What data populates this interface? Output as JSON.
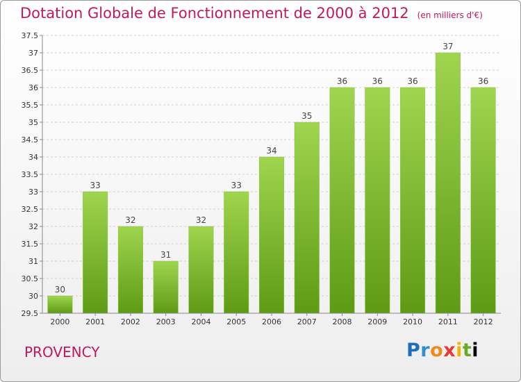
{
  "title": "Dotation Globale de Fonctionnement de 2000 à 2012",
  "subtitle": "(en milliers d'€)",
  "commune": "PROVENCY",
  "logo_text": "Proxiti",
  "colors": {
    "title": "#c2185b",
    "bar_light": "#9fd54f",
    "bar_dark": "#5e9b15"
  },
  "chart_data": {
    "type": "bar",
    "title": "Dotation Globale de Fonctionnement de 2000 à 2012",
    "subtitle": "(en milliers d'€)",
    "categories": [
      "2000",
      "2001",
      "2002",
      "2003",
      "2004",
      "2005",
      "2006",
      "2007",
      "2008",
      "2009",
      "2010",
      "2011",
      "2012"
    ],
    "values": [
      30,
      33,
      32,
      31,
      32,
      33,
      34,
      35,
      36,
      36,
      36,
      37,
      36
    ],
    "ylim": [
      29.5,
      37.5
    ],
    "yticks": [
      29.5,
      30,
      30.5,
      31,
      31.5,
      32,
      32.5,
      33,
      33.5,
      34,
      34.5,
      35,
      35.5,
      36,
      36.5,
      37,
      37.5
    ],
    "ytick_labels": [
      "29.5",
      "30",
      "30.5",
      "31",
      "31.5",
      "32",
      "32.5",
      "33",
      "33.5",
      "34",
      "34.5",
      "35",
      "35.5",
      "36",
      "36.5",
      "37",
      "37.5"
    ],
    "grid": true
  }
}
